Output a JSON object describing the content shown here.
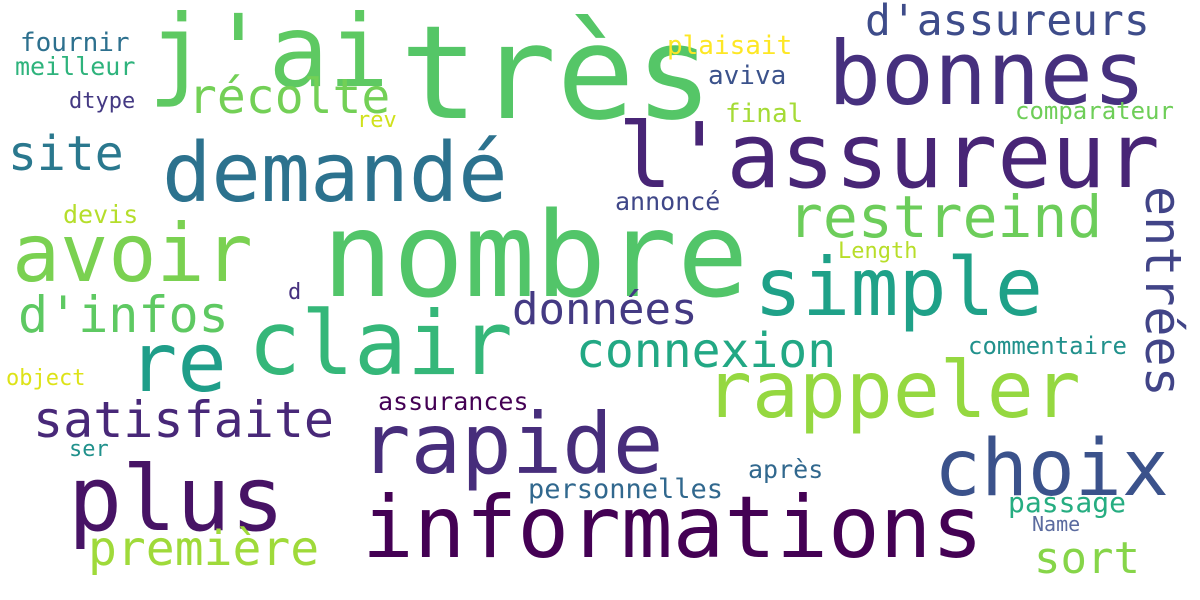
{
  "words": [
    {
      "text": "très",
      "color": "#55c667"
    },
    {
      "text": "nombre",
      "color": "#52c569"
    },
    {
      "text": "j'ai",
      "color": "#5ec962"
    },
    {
      "text": "l'assureur",
      "color": "#482576"
    },
    {
      "text": "bonnes",
      "color": "#46307e"
    },
    {
      "text": "informations",
      "color": "#440154"
    },
    {
      "text": "demandé",
      "color": "#2c728e"
    },
    {
      "text": "avoir",
      "color": "#7ad151"
    },
    {
      "text": "simple",
      "color": "#1fa188"
    },
    {
      "text": "clair",
      "color": "#35b779"
    },
    {
      "text": "rapide",
      "color": "#472d7b"
    },
    {
      "text": "plus",
      "color": "#471365"
    },
    {
      "text": "rappeler",
      "color": "#95d840"
    },
    {
      "text": "choix",
      "color": "#3b528b"
    },
    {
      "text": "re",
      "color": "#1f9e89"
    },
    {
      "text": "restreind",
      "color": "#6ccd5a"
    },
    {
      "text": "entrées",
      "color": "#414487"
    },
    {
      "text": "récolte",
      "color": "#73d056"
    },
    {
      "text": "d'assureurs",
      "color": "#3e4c8a"
    },
    {
      "text": "site",
      "color": "#2a788e"
    },
    {
      "text": "d'infos",
      "color": "#5ec962"
    },
    {
      "text": "satisfaite",
      "color": "#482878"
    },
    {
      "text": "connexion",
      "color": "#22a884"
    },
    {
      "text": "données",
      "color": "#443a83"
    },
    {
      "text": "première",
      "color": "#9fda3a"
    },
    {
      "text": "sort",
      "color": "#86d549"
    },
    {
      "text": "personnelles",
      "color": "#31688e"
    },
    {
      "text": "passage",
      "color": "#26ad81"
    },
    {
      "text": "assurances",
      "color": "#440154"
    },
    {
      "text": "commentaire",
      "color": "#21918c"
    },
    {
      "text": "comparateur",
      "color": "#6ece58"
    },
    {
      "text": "plaisait",
      "color": "#fde725"
    },
    {
      "text": "fournir",
      "color": "#2d708e"
    },
    {
      "text": "meilleur",
      "color": "#2eb37c"
    },
    {
      "text": "aviva",
      "color": "#3b528b"
    },
    {
      "text": "final",
      "color": "#a5db36"
    },
    {
      "text": "dtype",
      "color": "#443983"
    },
    {
      "text": "rev",
      "color": "#d0e11c"
    },
    {
      "text": "annoncé",
      "color": "#3f4788"
    },
    {
      "text": "devis",
      "color": "#b5de2b"
    },
    {
      "text": "Length",
      "color": "#b8de29"
    },
    {
      "text": "d",
      "color": "#46307e"
    },
    {
      "text": "object",
      "color": "#dde318"
    },
    {
      "text": "ser",
      "color": "#21918c"
    },
    {
      "text": "après",
      "color": "#31688e"
    },
    {
      "text": "Name",
      "color": "#5b6b9f"
    }
  ]
}
